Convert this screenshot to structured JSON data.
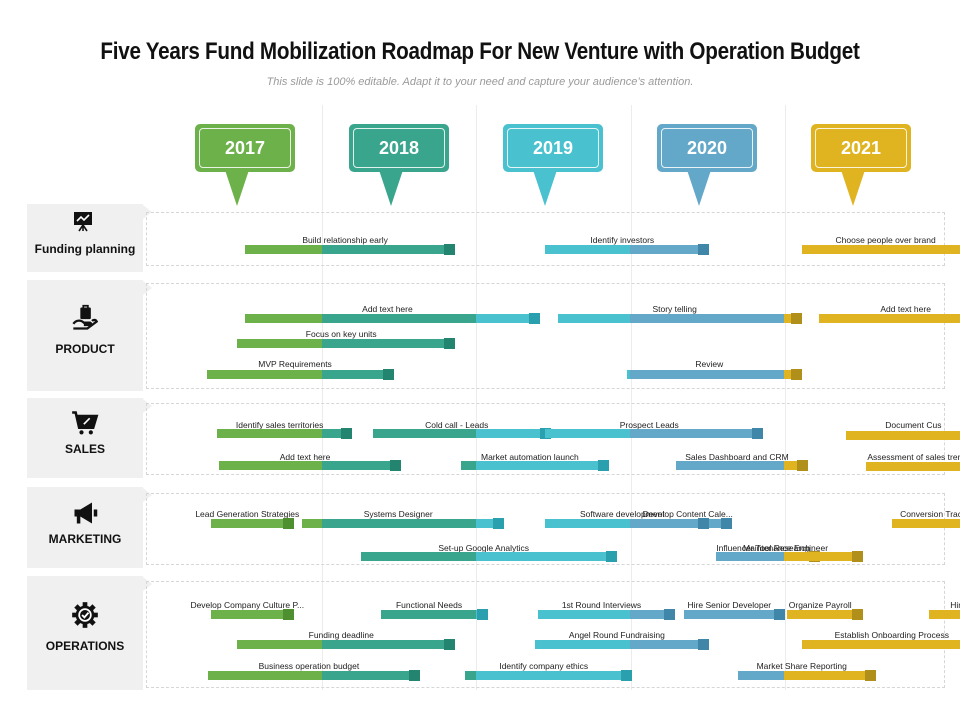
{
  "title": "Five Years Fund Mobilization Roadmap For New Venture with Operation Budget",
  "subtitle": "This slide is 100% editable. Adapt it to your need and capture your audience’s attention.",
  "years": [
    {
      "label": "2017",
      "color": "#6db14a",
      "dark": "#4e8f2f"
    },
    {
      "label": "2018",
      "color": "#3aa58d",
      "dark": "#238470"
    },
    {
      "label": "2019",
      "color": "#49c1cf",
      "dark": "#2a9fae"
    },
    {
      "label": "2020",
      "color": "#64a8c9",
      "dark": "#3f86a8"
    },
    {
      "label": "2021",
      "color": "#e0b420",
      "dark": "#b08f1a"
    }
  ],
  "rows": [
    {
      "name": "Funding planning",
      "icon": "presentation-chart-icon",
      "tasks": [
        {
          "label": "Build relationship early",
          "start": 2017.0,
          "end": 2018.3
        },
        {
          "label": "Identify investors",
          "start": 2018.95,
          "end": 2019.95
        },
        {
          "label": "Choose people over brand",
          "start": 2020.62,
          "end": 2021.7
        }
      ]
    },
    {
      "name": "PRODUCT",
      "icon": "hand-bag-icon",
      "tasks": [
        {
          "label": "Add text here",
          "start": 2017.0,
          "end": 2018.85
        },
        {
          "label": "Focus on key units",
          "start": 2016.95,
          "end": 2018.3
        },
        {
          "label": "MVP Requirements",
          "start": 2016.75,
          "end": 2017.9
        },
        {
          "label": "Story telling",
          "start": 2019.03,
          "end": 2020.55
        },
        {
          "label": "Review",
          "start": 2019.48,
          "end": 2020.55
        },
        {
          "label": "Add text here",
          "start": 2020.73,
          "end": 2021.85
        }
      ]
    },
    {
      "name": "SALES",
      "icon": "shopping-cart-icon",
      "tasks": [
        {
          "label": "Identify sales territories",
          "start": 2016.82,
          "end": 2017.63
        },
        {
          "label": "Add text here",
          "start": 2016.83,
          "end": 2017.95
        },
        {
          "label": "Cold call - Leads",
          "start": 2017.83,
          "end": 2018.92
        },
        {
          "label": "Market automation launch",
          "start": 2018.4,
          "end": 2019.3
        },
        {
          "label": "Prospect Leads",
          "start": 2018.95,
          "end": 2020.3
        },
        {
          "label": "Sales Dashboard and CRM",
          "start": 2019.8,
          "end": 2020.59
        },
        {
          "label": "Document Cus",
          "start": 2020.9,
          "end": 2021.78
        },
        {
          "label": "Assessment of sales trend",
          "start": 2021.03,
          "end": 2021.7
        }
      ]
    },
    {
      "name": "MARKETING",
      "icon": "megaphone-icon",
      "tasks": [
        {
          "label": "Lead Generation Strategies",
          "start": 2016.78,
          "end": 2017.25
        },
        {
          "label": "Set-up Google Analytics",
          "start": 2017.75,
          "end": 2019.35
        },
        {
          "label": "Develop Content Cale...",
          "start": 2019.65,
          "end": 2020.1
        },
        {
          "label": "Influencer Tool Research",
          "start": 2020.06,
          "end": 2020.67
        },
        {
          "label": "Conversion Tracki",
          "start": 2021.2,
          "end": 2021.75
        },
        {
          "label": "Systems Designer",
          "start": 2017.37,
          "end": 2018.62
        },
        {
          "label": "Software development",
          "start": 2018.95,
          "end": 2019.95
        },
        {
          "label": "Maintenance Engineer",
          "start": 2020.07,
          "end": 2020.95
        }
      ]
    },
    {
      "name": "OPERATIONS",
      "icon": "gear-check-icon",
      "tasks": [
        {
          "label": "Develop Company Culture P...",
          "start": 2016.78,
          "end": 2017.25
        },
        {
          "label": "Funding deadline",
          "start": 2016.95,
          "end": 2018.3
        },
        {
          "label": "Business operation budget",
          "start": 2016.76,
          "end": 2018.07
        },
        {
          "label": "Functional Needs",
          "start": 2017.88,
          "end": 2018.51
        },
        {
          "label": "Identify company ethics",
          "start": 2018.43,
          "end": 2019.45
        },
        {
          "label": "1st Round Interviews",
          "start": 2018.9,
          "end": 2019.73
        },
        {
          "label": "Angel Round Fundraising",
          "start": 2018.88,
          "end": 2019.95
        },
        {
          "label": "Hire Senior Developer",
          "start": 2019.85,
          "end": 2020.44
        },
        {
          "label": "Market Share Reporting",
          "start": 2020.2,
          "end": 2021.03
        },
        {
          "label": "Organize Payroll",
          "start": 2020.52,
          "end": 2020.95
        },
        {
          "label": "Establish Onboarding  Process",
          "start": 2020.62,
          "end": 2021.78
        },
        {
          "label": "Hire",
          "start": 2021.44,
          "end": 2021.82
        }
      ]
    }
  ]
}
